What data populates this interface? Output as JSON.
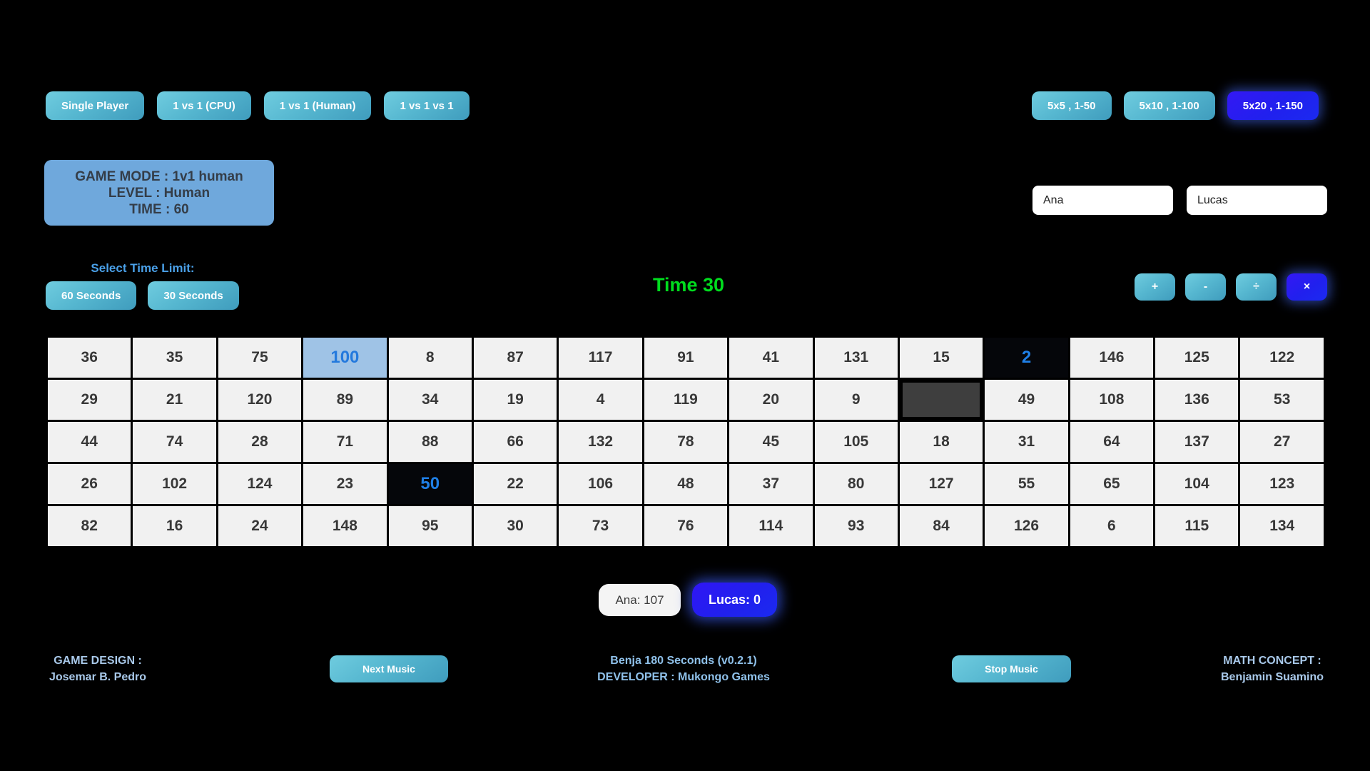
{
  "mode_buttons": {
    "items": [
      {
        "label": "Single Player"
      },
      {
        "label": "1 vs 1 (CPU)"
      },
      {
        "label": "1 vs 1 (Human)"
      },
      {
        "label": "1 vs 1 vs 1"
      }
    ]
  },
  "size_buttons": {
    "items": [
      {
        "label": "5x5 , 1-50",
        "active": false
      },
      {
        "label": "5x10 , 1-100",
        "active": false
      },
      {
        "label": "5x20 , 1-150",
        "active": true
      }
    ]
  },
  "game_info": {
    "mode": "GAME MODE : 1v1 human",
    "level": "LEVEL : Human",
    "time": "TIME : 60"
  },
  "players": {
    "p1_name": "Ana",
    "p2_name": "Lucas"
  },
  "time_limit": {
    "label": "Select Time Limit:",
    "options": [
      {
        "label": "60 Seconds"
      },
      {
        "label": "30 Seconds"
      }
    ]
  },
  "timer": {
    "text": "Time 30",
    "color": "#00dc1e"
  },
  "operators": {
    "items": [
      {
        "symbol": "+",
        "name": "plus",
        "active": false
      },
      {
        "symbol": "-",
        "name": "minus",
        "active": false
      },
      {
        "symbol": "÷",
        "name": "divide",
        "active": false
      },
      {
        "symbol": "×",
        "name": "multiply",
        "active": true
      }
    ]
  },
  "grid": {
    "rows": [
      [
        {
          "v": "36"
        },
        {
          "v": "35"
        },
        {
          "v": "75"
        },
        {
          "v": "100",
          "s": "highlight"
        },
        {
          "v": "8"
        },
        {
          "v": "87"
        },
        {
          "v": "117"
        },
        {
          "v": "91"
        },
        {
          "v": "41"
        },
        {
          "v": "131"
        },
        {
          "v": "15"
        },
        {
          "v": "2",
          "s": "picked"
        },
        {
          "v": "146"
        },
        {
          "v": "125"
        },
        {
          "v": "122"
        }
      ],
      [
        {
          "v": "29"
        },
        {
          "v": "21"
        },
        {
          "v": "120"
        },
        {
          "v": "89"
        },
        {
          "v": "34"
        },
        {
          "v": "19"
        },
        {
          "v": "4"
        },
        {
          "v": "119"
        },
        {
          "v": "20"
        },
        {
          "v": "9"
        },
        {
          "v": "",
          "s": "consumed"
        },
        {
          "v": "49"
        },
        {
          "v": "108"
        },
        {
          "v": "136"
        },
        {
          "v": "53"
        }
      ],
      [
        {
          "v": "44"
        },
        {
          "v": "74"
        },
        {
          "v": "28"
        },
        {
          "v": "71"
        },
        {
          "v": "88"
        },
        {
          "v": "66"
        },
        {
          "v": "132"
        },
        {
          "v": "78"
        },
        {
          "v": "45"
        },
        {
          "v": "105"
        },
        {
          "v": "18"
        },
        {
          "v": "31"
        },
        {
          "v": "64"
        },
        {
          "v": "137"
        },
        {
          "v": "27"
        }
      ],
      [
        {
          "v": "26"
        },
        {
          "v": "102"
        },
        {
          "v": "124"
        },
        {
          "v": "23"
        },
        {
          "v": "50",
          "s": "picked"
        },
        {
          "v": "22"
        },
        {
          "v": "106"
        },
        {
          "v": "48"
        },
        {
          "v": "37"
        },
        {
          "v": "80"
        },
        {
          "v": "127"
        },
        {
          "v": "55"
        },
        {
          "v": "65"
        },
        {
          "v": "104"
        },
        {
          "v": "123"
        }
      ],
      [
        {
          "v": "82"
        },
        {
          "v": "16"
        },
        {
          "v": "24"
        },
        {
          "v": "148"
        },
        {
          "v": "95"
        },
        {
          "v": "30"
        },
        {
          "v": "73"
        },
        {
          "v": "76"
        },
        {
          "v": "114"
        },
        {
          "v": "93"
        },
        {
          "v": "84"
        },
        {
          "v": "126"
        },
        {
          "v": "6"
        },
        {
          "v": "115"
        },
        {
          "v": "134"
        }
      ]
    ]
  },
  "scores": {
    "p1": "Ana: 107",
    "p2": "Lucas: 0"
  },
  "footer": {
    "design_label": "GAME DESIGN :",
    "design_name": "Josemar B. Pedro",
    "next_music": "Next Music",
    "title": "Benja 180 Seconds (v0.2.1)",
    "developer": "DEVELOPER : Mukongo Games",
    "stop_music": "Stop Music",
    "concept_label": "MATH CONCEPT :",
    "concept_name": "Benjamin Suamino"
  },
  "colors": {
    "accent_teal": "#56b7d0",
    "accent_blue": "#2120ee",
    "panel_blue": "#6fa8dc",
    "timer_green": "#00dc1e",
    "cell_bg": "#f1f1f1",
    "highlight_cell_bg": "#9fc3e6",
    "picked_cell_bg": "#05060a",
    "consumed_cell_bg": "#3e3e3e"
  }
}
